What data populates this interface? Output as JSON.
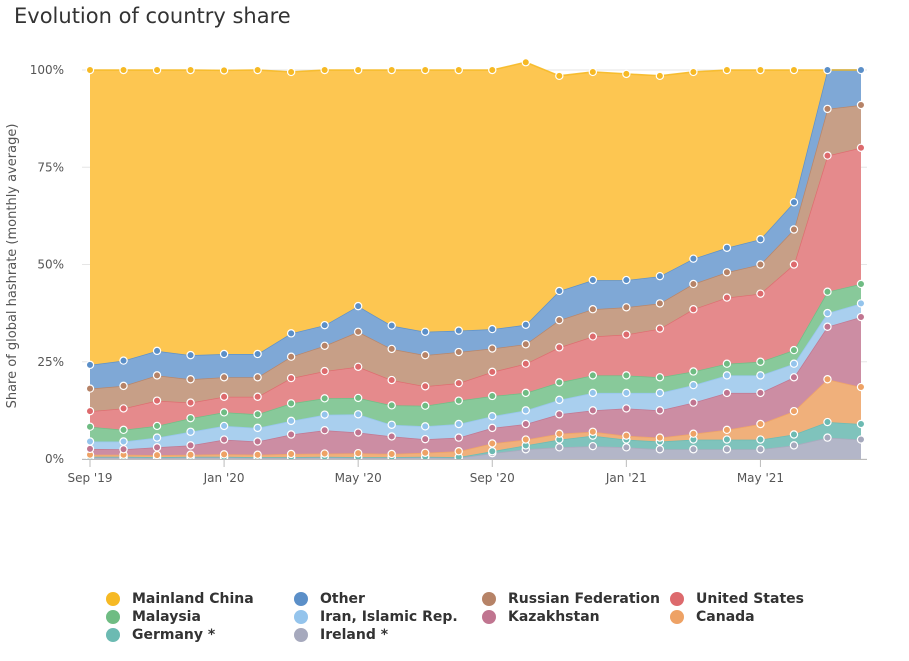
{
  "title": "Evolution of country share",
  "chart_data": {
    "type": "area",
    "stacked": true,
    "ylabel": "Share of global hashrate (monthly average)",
    "xlabel": "",
    "ylim": [
      0,
      100
    ],
    "yticks": [
      0,
      25,
      50,
      75,
      100
    ],
    "ytick_labels": [
      "0%",
      "25%",
      "50%",
      "75%",
      "100%"
    ],
    "x": [
      "Sep '19",
      "Oct '19",
      "Nov '19",
      "Dec '19",
      "Jan '20",
      "Feb '20",
      "Mar '20",
      "Apr '20",
      "May '20",
      "Jun '20",
      "Jul '20",
      "Aug '20",
      "Sep '20",
      "Oct '20",
      "Nov '20",
      "Dec '20",
      "Jan '21",
      "Feb '21",
      "Mar '21",
      "Apr '21",
      "May '21",
      "Jun '21",
      "Jul '21",
      "Aug '21"
    ],
    "xtick_labels": [
      {
        "index": 0,
        "label": "Sep '19"
      },
      {
        "index": 4,
        "label": "Jan '20"
      },
      {
        "index": 8,
        "label": "May '20"
      },
      {
        "index": 12,
        "label": "Sep '20"
      },
      {
        "index": 16,
        "label": "Jan '21"
      },
      {
        "index": 20,
        "label": "May '21"
      }
    ],
    "grid": true,
    "legend_position": "bottom",
    "series": [
      {
        "name": "Ireland *",
        "color": "#b3b6c8",
        "values": [
          0.4,
          0.4,
          0.3,
          0.4,
          0.4,
          0.3,
          0.3,
          0.4,
          0.3,
          0.3,
          0.4,
          0.3,
          1.5,
          2.5,
          3.0,
          3.3,
          3.0,
          2.5,
          2.5,
          2.5,
          2.5,
          3.5,
          5.5,
          5.0
        ]
      },
      {
        "name": "Germany *",
        "color": "#7fc3bc",
        "values": [
          0.2,
          0.2,
          0.2,
          0.2,
          0.2,
          0.2,
          0.2,
          0.2,
          0.2,
          0.2,
          0.2,
          0.2,
          0.5,
          1.0,
          2.0,
          2.7,
          2.0,
          2.0,
          2.5,
          2.5,
          2.5,
          2.8,
          4.0,
          4.0
        ]
      },
      {
        "name": "Canada",
        "color": "#f0b07b",
        "values": [
          0.5,
          0.5,
          0.5,
          0.5,
          0.6,
          0.6,
          0.8,
          0.8,
          1.0,
          0.8,
          1.0,
          1.5,
          2.0,
          1.5,
          1.5,
          1.0,
          1.0,
          1.0,
          1.5,
          2.5,
          4.0,
          6.0,
          11.0,
          9.5
        ]
      },
      {
        "name": "Kazakhstan",
        "color": "#cc8da3",
        "values": [
          1.5,
          1.4,
          2.0,
          2.4,
          3.8,
          3.4,
          5.0,
          6.0,
          5.3,
          4.5,
          3.5,
          3.5,
          4.0,
          4.0,
          5.0,
          5.5,
          7.0,
          7.0,
          8.0,
          9.5,
          8.0,
          8.7,
          13.5,
          18.0
        ]
      },
      {
        "name": "Iran, Islamic Rep.",
        "color": "#a9cfee",
        "values": [
          1.9,
          2.0,
          2.5,
          3.5,
          3.5,
          3.5,
          3.5,
          4.0,
          4.7,
          3.0,
          3.3,
          3.5,
          3.0,
          3.5,
          3.7,
          4.5,
          4.0,
          4.5,
          4.5,
          4.5,
          4.5,
          3.5,
          3.5,
          3.5
        ]
      },
      {
        "name": "Malaysia",
        "color": "#88c99a",
        "values": [
          3.8,
          3.0,
          3.0,
          3.5,
          3.5,
          3.5,
          4.5,
          4.2,
          4.2,
          5.0,
          5.3,
          6.0,
          5.2,
          4.5,
          4.5,
          4.5,
          4.5,
          4.0,
          3.5,
          3.0,
          3.5,
          3.5,
          5.5,
          5.0
        ]
      },
      {
        "name": "United States",
        "color": "#e58a8c",
        "values": [
          4.0,
          5.5,
          6.5,
          4.0,
          4.0,
          4.5,
          6.5,
          7.0,
          8.0,
          6.5,
          5.0,
          4.5,
          6.2,
          7.5,
          9.0,
          10.0,
          10.5,
          12.5,
          16.0,
          17.0,
          17.5,
          22.0,
          35.0,
          35.0
        ]
      },
      {
        "name": "Russian Federation",
        "color": "#c79f87",
        "values": [
          5.8,
          5.8,
          6.5,
          6.0,
          5.0,
          5.0,
          5.5,
          6.5,
          9.0,
          8.0,
          8.0,
          8.0,
          6.0,
          5.0,
          7.0,
          7.0,
          7.0,
          6.5,
          6.5,
          6.5,
          7.5,
          9.0,
          12.0,
          11.0
        ]
      },
      {
        "name": "Other",
        "color": "#7fa8d6",
        "values": [
          6.1,
          6.5,
          6.3,
          6.2,
          6.0,
          6.0,
          6.0,
          5.3,
          6.6,
          6.0,
          6.0,
          5.5,
          5.0,
          5.0,
          7.5,
          7.5,
          7.0,
          7.0,
          6.5,
          6.3,
          6.5,
          7.0,
          10.0,
          9.0
        ]
      },
      {
        "name": "Mainland China",
        "color": "#fdc651",
        "values": [
          75.8,
          74.7,
          72.2,
          73.3,
          72.9,
          73.0,
          67.2,
          65.6,
          60.7,
          65.7,
          67.3,
          67.0,
          66.6,
          67.5,
          55.3,
          53.5,
          53.0,
          51.5,
          48.0,
          45.7,
          43.5,
          34.0,
          0.0,
          0.0
        ]
      }
    ]
  },
  "legend": [
    {
      "label": "Mainland China",
      "color": "#f6b924"
    },
    {
      "label": "Other",
      "color": "#5b8fc8"
    },
    {
      "label": "Russian Federation",
      "color": "#b68367"
    },
    {
      "label": "United States",
      "color": "#dd6a6d"
    },
    {
      "label": "Malaysia",
      "color": "#6fbc83"
    },
    {
      "label": "Iran, Islamic Rep.",
      "color": "#94c4ec"
    },
    {
      "label": "Kazakhstan",
      "color": "#c07590"
    },
    {
      "label": "Canada",
      "color": "#eea265"
    },
    {
      "label": "Germany *",
      "color": "#6cbab2"
    },
    {
      "label": "Ireland *",
      "color": "#a6a9bd"
    }
  ]
}
